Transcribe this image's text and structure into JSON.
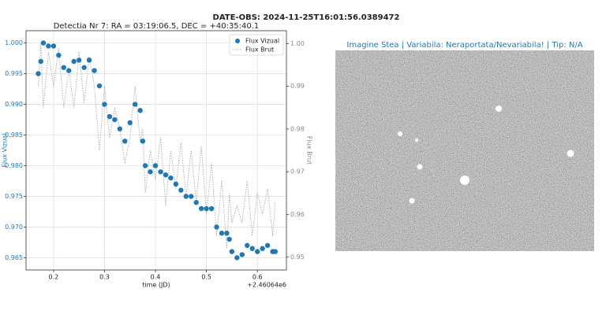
{
  "chart_data": {
    "type": "scatter",
    "suptitle": "DATE-OBS: 2024-11-25T16:01:56.0389472",
    "title": "Detectia Nr 7: RA = 03:19:06.5, DEC = +40:35:40.1",
    "xlabel": "time (JD)",
    "x_offset_label": "+2.46064e6",
    "ylabel": "Flux Vizual",
    "y2label": "Flux Brut",
    "image_title": "Imagine Stea | Variabila: Neraportata/Nevariabila! | Tip: N/A",
    "grid": true,
    "legend": "upper right",
    "xlim": [
      0.146,
      0.657
    ],
    "xticks": [
      0.2,
      0.3,
      0.4,
      0.5,
      0.6
    ],
    "ylim": [
      0.963,
      1.002
    ],
    "yticks": [
      0.965,
      {
        "value": 0.97,
        "label": "0.970"
      },
      0.975,
      {
        "value": 0.98,
        "label": "0.980"
      },
      0.985,
      {
        "value": 0.99,
        "label": "0.990"
      },
      0.995,
      {
        "value": 1.0,
        "label": "1.000"
      }
    ],
    "y2lim": [
      0.947,
      1.003
    ],
    "y2ticks": [
      0.95,
      0.96,
      0.97,
      0.98,
      0.99,
      {
        "value": 1.0,
        "label": "1.00"
      }
    ],
    "x": [
      0.17,
      0.175,
      0.18,
      0.19,
      0.2,
      0.21,
      0.22,
      0.23,
      0.24,
      0.25,
      0.26,
      0.27,
      0.28,
      0.29,
      0.3,
      0.31,
      0.32,
      0.33,
      0.34,
      0.35,
      0.36,
      0.37,
      0.375,
      0.38,
      0.39,
      0.4,
      0.41,
      0.42,
      0.43,
      0.44,
      0.45,
      0.46,
      0.47,
      0.48,
      0.49,
      0.5,
      0.51,
      0.52,
      0.53,
      0.54,
      0.545,
      0.55,
      0.56,
      0.57,
      0.58,
      0.59,
      0.6,
      0.61,
      0.62,
      0.63,
      0.635
    ],
    "series": [
      {
        "name": "Flux Vizual",
        "color": "#1f77b4",
        "kind": "scatter",
        "values": [
          0.995,
          0.997,
          1.0,
          0.9995,
          0.9995,
          0.998,
          0.996,
          0.9955,
          0.997,
          0.9972,
          0.996,
          0.9972,
          0.9955,
          0.993,
          0.99,
          0.988,
          0.9875,
          0.986,
          0.984,
          0.987,
          0.99,
          0.989,
          0.984,
          0.98,
          0.979,
          0.98,
          0.979,
          0.9785,
          0.978,
          0.977,
          0.976,
          0.975,
          0.975,
          0.974,
          0.973,
          0.973,
          0.973,
          0.97,
          0.969,
          0.969,
          0.968,
          0.966,
          0.965,
          0.9655,
          0.967,
          0.9665,
          0.966,
          0.9665,
          0.967,
          0.966,
          0.966
        ]
      },
      {
        "name": "Flux Brut",
        "color": "#aaaaaa",
        "kind": "line",
        "axis": "y2",
        "values": [
          0.99,
          1.0,
          0.985,
          0.998,
          0.99,
          0.999,
          0.985,
          0.994,
          0.985,
          0.998,
          0.986,
          0.997,
          0.99,
          0.975,
          0.99,
          0.978,
          0.985,
          0.98,
          0.972,
          0.978,
          0.99,
          0.977,
          0.98,
          0.965,
          0.975,
          0.968,
          0.978,
          0.962,
          0.975,
          0.966,
          0.977,
          0.964,
          0.975,
          0.963,
          0.976,
          0.96,
          0.972,
          0.955,
          0.968,
          0.952,
          0.965,
          0.958,
          0.962,
          0.958,
          0.968,
          0.955,
          0.965,
          0.96,
          0.966,
          0.955,
          0.963
        ]
      }
    ]
  }
}
